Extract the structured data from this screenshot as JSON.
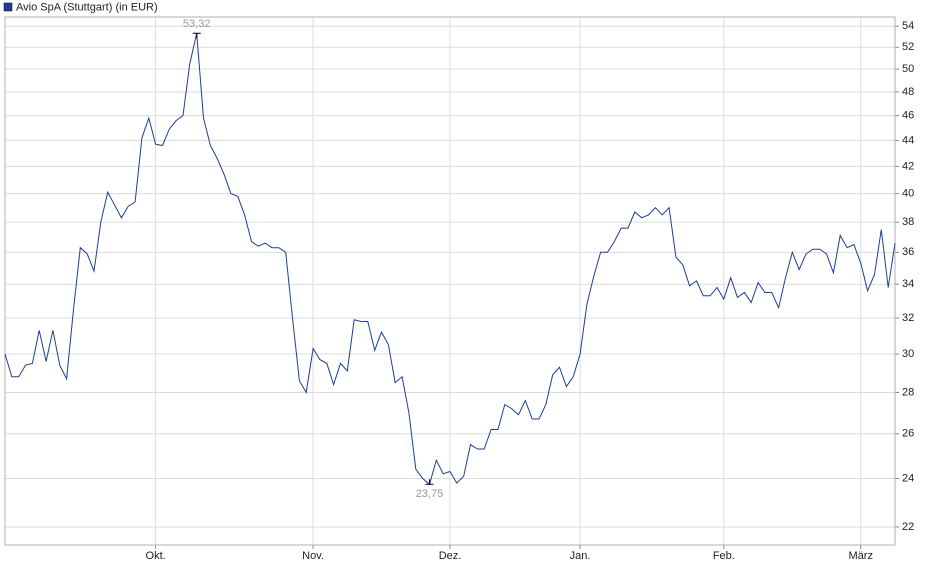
{
  "chart_data": {
    "type": "line",
    "log_scale": true,
    "grid": true,
    "y_axis_side": "right",
    "ylim": [
      21.3,
      54.9
    ],
    "yticks": [
      22,
      24,
      26,
      28,
      30,
      32,
      34,
      36,
      38,
      40,
      42,
      44,
      46,
      48,
      50,
      52,
      54
    ],
    "categories": [
      null,
      null,
      null,
      null,
      null,
      null,
      null,
      null,
      null,
      null,
      null,
      null,
      null,
      null,
      null,
      null,
      null,
      null,
      null,
      null,
      null,
      null,
      "Okt.",
      null,
      null,
      null,
      null,
      null,
      null,
      null,
      null,
      null,
      null,
      null,
      null,
      null,
      null,
      null,
      null,
      null,
      null,
      null,
      null,
      null,
      null,
      "Nov.",
      null,
      null,
      null,
      null,
      null,
      null,
      null,
      null,
      null,
      null,
      null,
      null,
      null,
      null,
      null,
      null,
      null,
      null,
      null,
      "Dez.",
      null,
      null,
      null,
      null,
      null,
      null,
      null,
      null,
      null,
      null,
      null,
      null,
      null,
      null,
      null,
      null,
      null,
      null,
      "Jan.",
      null,
      null,
      null,
      null,
      null,
      null,
      null,
      null,
      null,
      null,
      null,
      null,
      null,
      null,
      null,
      null,
      null,
      null,
      null,
      null,
      "Feb.",
      null,
      null,
      null,
      null,
      null,
      null,
      null,
      null,
      null,
      null,
      null,
      null,
      null,
      null,
      null,
      null,
      null,
      null,
      null,
      "März",
      null,
      null,
      null,
      null,
      null
    ],
    "series": [
      {
        "name": "Avio SpA (Stuttgart) (in EUR)",
        "color": "#1c3f94",
        "values": [
          30,
          28.8,
          28.8,
          29.4,
          29.5,
          31.3,
          29.6,
          31.3,
          29.4,
          28.7,
          32.5,
          36.3,
          35.9,
          34.8,
          38,
          40.1,
          39.2,
          38.3,
          39.1,
          39.4,
          44.2,
          45.8,
          43.7,
          43.6,
          44.9,
          45.6,
          46,
          50.5,
          53.32,
          45.8,
          43.6,
          42.6,
          41.4,
          40,
          39.8,
          38.5,
          36.7,
          36.4,
          36.6,
          36.3,
          36.3,
          36,
          32,
          28.6,
          28,
          30.3,
          29.7,
          29.5,
          28.4,
          29.5,
          29.1,
          31.9,
          31.8,
          31.8,
          30.2,
          31.2,
          30.5,
          28.5,
          28.8,
          27,
          24.4,
          24,
          23.75,
          24.8,
          24.2,
          24.3,
          23.8,
          24.1,
          25.5,
          25.3,
          25.3,
          26.2,
          26.2,
          27.4,
          27.2,
          26.9,
          27.6,
          26.7,
          26.7,
          27.4,
          28.9,
          29.3,
          28.3,
          28.8,
          30,
          32.8,
          34.5,
          36,
          36,
          36.7,
          37.6,
          37.6,
          38.7,
          38.3,
          38.5,
          39,
          38.5,
          39,
          35.7,
          35.2,
          33.9,
          34.2,
          33.3,
          33.3,
          33.8,
          33.1,
          34.4,
          33.2,
          33.5,
          32.9,
          34.1,
          33.5,
          33.5,
          32.6,
          34.4,
          36,
          34.9,
          35.9,
          36.2,
          36.2,
          35.9,
          34.7,
          37.1,
          36.3,
          36.5,
          35.3,
          33.6,
          34.6,
          37.5,
          33.8,
          36.6
        ],
        "value_labels": [
          null,
          null,
          null,
          null,
          null,
          null,
          null,
          null,
          null,
          null,
          null,
          null,
          null,
          null,
          null,
          null,
          null,
          null,
          null,
          null,
          null,
          null,
          null,
          null,
          null,
          null,
          null,
          null,
          "53,32",
          null,
          null,
          null,
          null,
          null,
          null,
          null,
          null,
          null,
          null,
          null,
          null,
          null,
          null,
          null,
          null,
          null,
          null,
          null,
          null,
          null,
          null,
          null,
          null,
          null,
          null,
          null,
          null,
          null,
          null,
          null,
          null,
          null,
          "23,75",
          null,
          null,
          null,
          null,
          null,
          null,
          null,
          null,
          null,
          null,
          null,
          null,
          null,
          null,
          null,
          null,
          null,
          null,
          null,
          null,
          null,
          null,
          null,
          null,
          null,
          null,
          null,
          null,
          null,
          null,
          null,
          null,
          null,
          null,
          null,
          null,
          null,
          null,
          null,
          null,
          null,
          null,
          null,
          null,
          null,
          null,
          null,
          null,
          null,
          null,
          null,
          null,
          null,
          null,
          null,
          null,
          null,
          null,
          null,
          null,
          null,
          null,
          null,
          null,
          null,
          null,
          null,
          null
        ]
      }
    ]
  }
}
